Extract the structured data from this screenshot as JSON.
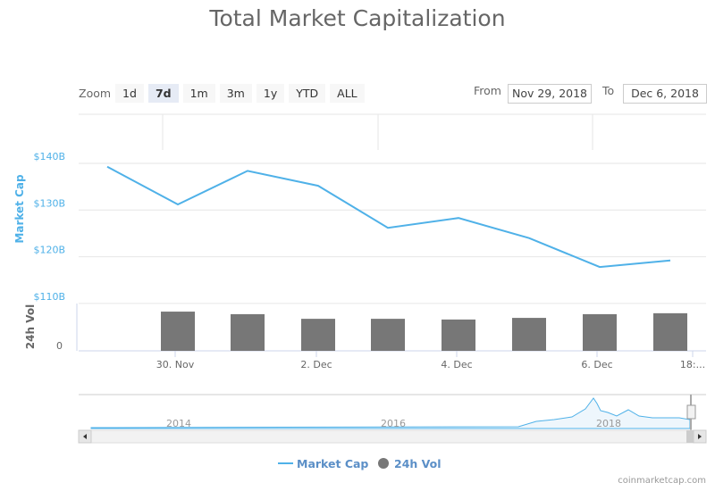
{
  "title": "Total Market Capitalization",
  "zoom": {
    "label": "Zoom",
    "buttons": [
      "1d",
      "7d",
      "1m",
      "3m",
      "1y",
      "YTD",
      "ALL"
    ],
    "selected": "7d"
  },
  "range": {
    "from_label": "From",
    "from": "Nov 29, 2018",
    "to_label": "To",
    "to": "Dec 6, 2018"
  },
  "navigator": {
    "years": [
      "2014",
      "2016",
      "2018"
    ]
  },
  "legend": [
    "Market Cap",
    "24h Vol"
  ],
  "credit": "coinmarketcap.com",
  "colors": {
    "line": "#4fb1e8",
    "bars": "#777777",
    "legend": "#5b8fc7"
  },
  "chart_data": {
    "type": "line",
    "title": "Total Market Capitalization",
    "ylabel": "Market Cap",
    "ylabel2": "24h Vol",
    "yticks": [
      "$110B",
      "$120B",
      "$130B",
      "$140B"
    ],
    "ylim": [
      110,
      145
    ],
    "vol_ticks": [
      "0"
    ],
    "xticks": [
      "30. Nov",
      "2. Dec",
      "4. Dec",
      "6. Dec",
      "18:..."
    ],
    "series": [
      {
        "name": "Market Cap",
        "unit": "$B",
        "values": [
          139.3,
          131.2,
          138.4,
          135.2,
          126.2,
          128.3,
          124.0,
          117.8,
          119.2
        ]
      },
      {
        "name": "24h Vol",
        "type": "bar",
        "values": [
          16.9,
          15.8,
          13.8,
          13.8,
          13.5,
          14.2,
          15.8,
          16.2
        ],
        "ylim": [
          0,
          20
        ]
      }
    ]
  }
}
